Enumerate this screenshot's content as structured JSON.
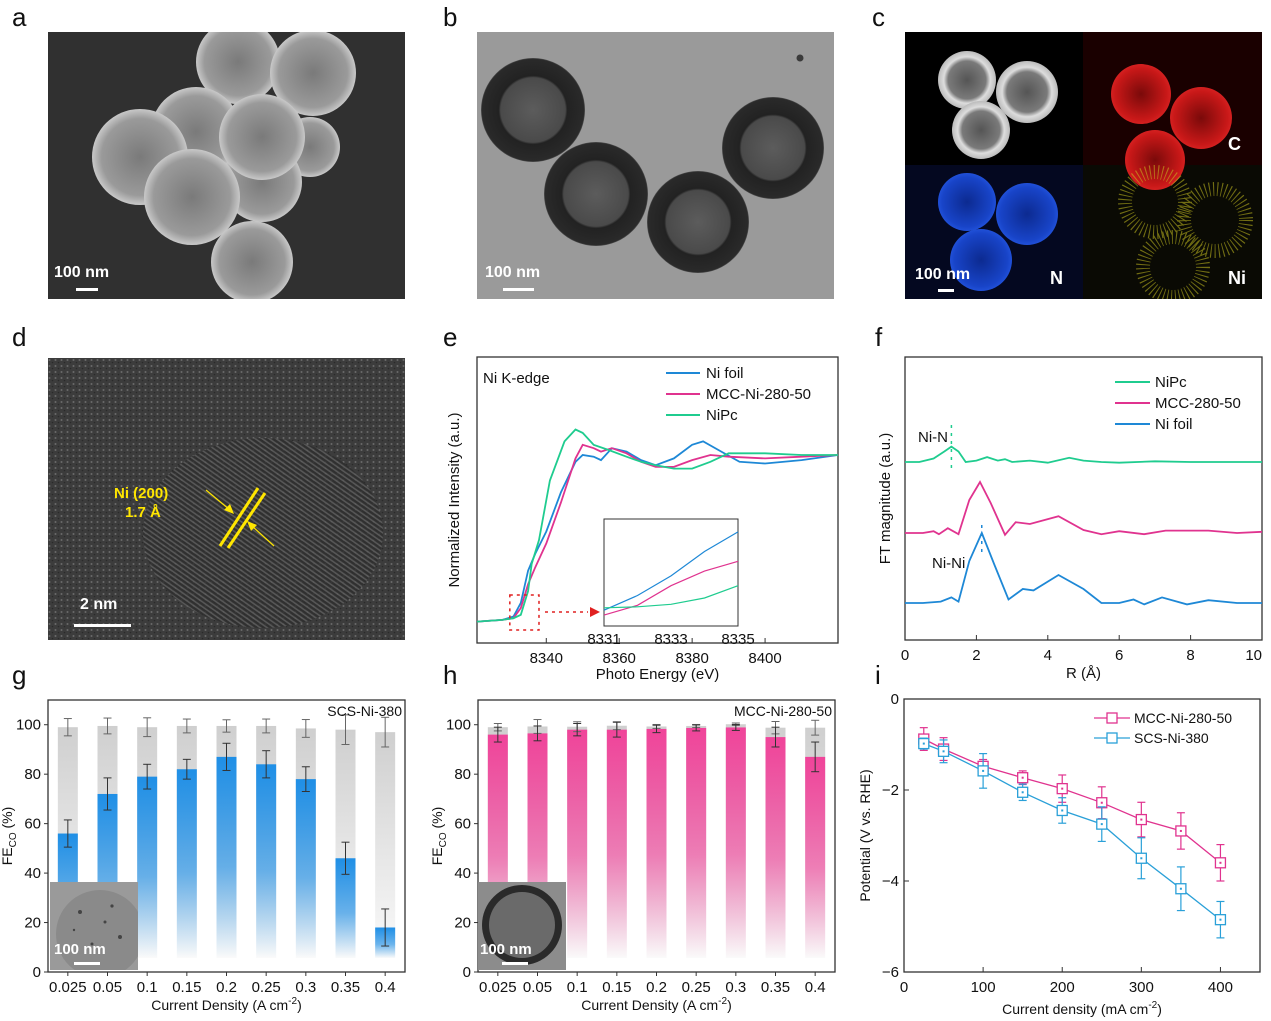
{
  "panels": {
    "a": {
      "label": "a",
      "scale_bar": "100 nm"
    },
    "b": {
      "label": "b",
      "scale_bar": "100 nm"
    },
    "c": {
      "label": "c",
      "scale_bar": "100 nm",
      "elements": [
        "C",
        "N",
        "Ni"
      ]
    },
    "d": {
      "label": "d",
      "scale_bar": "2 nm",
      "annotation_line1": "Ni (200)",
      "annotation_line2": "1.7 Å"
    },
    "e": {
      "label": "e"
    },
    "f": {
      "label": "f"
    },
    "g": {
      "label": "g",
      "inset_scale": "100 nm"
    },
    "h": {
      "label": "h",
      "inset_scale": "100 nm"
    },
    "i": {
      "label": "i"
    }
  },
  "colors": {
    "blue": "#1f8fe6",
    "pink": "#f0449a",
    "green": "#1fcc8f",
    "gray": "#cfcfcf",
    "ni_blue": "#1e88d6",
    "mcc_pink": "#e0338f"
  },
  "chart_data": [
    {
      "id": "e",
      "type": "line",
      "annotation": "Ni K-edge",
      "xlabel": "Photo Energy (eV)",
      "ylabel": "Normalized Intensity (a.u.)",
      "xlim": [
        8321,
        8420
      ],
      "xticks": [
        "8340",
        "8360",
        "8380",
        "8400"
      ],
      "xtick_values": [
        8340,
        8360,
        8380,
        8400
      ],
      "legend": [
        "Ni foil",
        "MCC-Ni-280-50",
        "NiPc"
      ],
      "legend_position": "top-right",
      "series": [
        {
          "name": "Ni foil",
          "x": [
            8321,
            8328,
            8331,
            8333,
            8335,
            8337,
            8340,
            8344,
            8348,
            8350,
            8353,
            8355,
            8358,
            8362,
            8366,
            8370,
            8375,
            8380,
            8383,
            8388,
            8393,
            8400,
            8410,
            8420
          ],
          "y": [
            0.02,
            0.03,
            0.05,
            0.13,
            0.32,
            0.42,
            0.55,
            0.78,
            0.96,
            1.0,
            0.99,
            0.97,
            1.04,
            1.02,
            0.97,
            0.94,
            0.98,
            1.06,
            1.08,
            1.02,
            0.96,
            0.95,
            0.97,
            1.0
          ]
        },
        {
          "name": "MCC-Ni-280-50",
          "x": [
            8321,
            8328,
            8331,
            8333,
            8335,
            8337,
            8340,
            8344,
            8348,
            8350,
            8353,
            8355,
            8358,
            8362,
            8366,
            8370,
            8375,
            8380,
            8385,
            8390,
            8400,
            8410,
            8420
          ],
          "y": [
            0.02,
            0.03,
            0.04,
            0.1,
            0.24,
            0.34,
            0.48,
            0.72,
            0.98,
            1.06,
            1.04,
            1.02,
            1.04,
            1.01,
            0.96,
            0.93,
            0.93,
            0.97,
            1.0,
            0.99,
            0.98,
            0.99,
            1.0
          ]
        },
        {
          "name": "NiPc",
          "x": [
            8321,
            8328,
            8331,
            8333,
            8335,
            8336,
            8338,
            8341,
            8345,
            8348,
            8350,
            8353,
            8357,
            8362,
            8366,
            8370,
            8375,
            8380,
            8385,
            8390,
            8400,
            8410,
            8420
          ],
          "y": [
            0.02,
            0.03,
            0.04,
            0.06,
            0.2,
            0.36,
            0.5,
            0.85,
            1.08,
            1.15,
            1.13,
            1.06,
            1.03,
            0.99,
            0.96,
            0.94,
            0.92,
            0.92,
            0.96,
            1.01,
            1.01,
            1.0,
            1.0
          ]
        }
      ],
      "inset": {
        "xticks": [
          "8331",
          "8333",
          "8335"
        ],
        "xtick_values": [
          8331,
          8333,
          8335
        ],
        "series": [
          {
            "name": "Ni foil",
            "x": [
              8331,
              8332,
              8333,
              8334,
              8335
            ],
            "y": [
              0.05,
              0.08,
              0.12,
              0.17,
              0.21
            ]
          },
          {
            "name": "MCC-Ni-280-50",
            "x": [
              8331,
              8332,
              8333,
              8334,
              8335
            ],
            "y": [
              0.04,
              0.06,
              0.1,
              0.13,
              0.15
            ]
          },
          {
            "name": "NiPc",
            "x": [
              8331,
              8332,
              8333,
              8334,
              8335
            ],
            "y": [
              0.055,
              0.057,
              0.062,
              0.075,
              0.1
            ]
          }
        ]
      }
    },
    {
      "id": "f",
      "type": "line",
      "xlabel": "R (Å)",
      "ylabel": "FT magnitude (a.u.)",
      "xlim": [
        0,
        10
      ],
      "xticks": [
        "0",
        "2",
        "4",
        "6",
        "8",
        "10"
      ],
      "xtick_values": [
        0,
        2,
        4,
        6,
        8,
        10
      ],
      "legend": [
        "NiPc",
        "MCC-280-50",
        "Ni foil"
      ],
      "legend_position": "top-right",
      "annotations": [
        "Ni-N",
        "Ni-Ni"
      ],
      "series": [
        {
          "name": "NiPc",
          "offset": 2.0,
          "x": [
            0,
            0.4,
            0.8,
            1.1,
            1.3,
            1.5,
            1.7,
            2.0,
            2.3,
            2.6,
            2.8,
            3.0,
            3.5,
            4.0,
            4.6,
            5.0,
            5.5,
            6.0,
            7.0,
            8.0,
            9.0,
            10
          ],
          "y": [
            0,
            0,
            0.05,
            0.15,
            0.22,
            0.15,
            0.0,
            0.02,
            0.07,
            0.02,
            0.04,
            0.0,
            0.02,
            -0.01,
            0.06,
            0.02,
            0.0,
            -0.01,
            0.01,
            0.0,
            0.0,
            0.0
          ]
        },
        {
          "name": "MCC-280-50",
          "offset": 1.0,
          "x": [
            0,
            0.5,
            0.8,
            0.95,
            1.2,
            1.5,
            1.8,
            2.1,
            2.4,
            2.8,
            3.1,
            3.5,
            4.3,
            5.0,
            5.5,
            6.0,
            6.7,
            7.3,
            8.5,
            9.3,
            10
          ],
          "y": [
            0,
            0,
            0.03,
            -0.02,
            0.08,
            -0.02,
            0.55,
            0.85,
            0.5,
            -0.03,
            0.18,
            0.15,
            0.28,
            0.05,
            -0.02,
            0.03,
            -0.02,
            0.04,
            0.04,
            0.0,
            0.02
          ]
        },
        {
          "name": "Ni foil",
          "offset": 0.0,
          "x": [
            0,
            0.5,
            1.0,
            1.3,
            1.5,
            1.8,
            2.15,
            2.5,
            2.9,
            3.3,
            3.6,
            4.3,
            5.0,
            5.5,
            6.0,
            6.4,
            6.7,
            7.2,
            7.9,
            8.5,
            9.3,
            10
          ],
          "y": [
            0,
            0,
            0.02,
            0.08,
            0.02,
            0.6,
            1.0,
            0.55,
            0.05,
            0.2,
            0.18,
            0.4,
            0.2,
            0.0,
            0.0,
            0.05,
            -0.02,
            0.08,
            -0.02,
            0.04,
            0.0,
            0.0
          ]
        }
      ]
    },
    {
      "id": "g",
      "type": "bar",
      "title": "SCS-Ni-380",
      "xlabel": "Current Density (A cm",
      "xlabel_sup": "-2",
      "xlabel_end": ")",
      "ylabel": "FE",
      "ylabel_sub": "CO",
      "ylabel_end": " (%)",
      "ylim": [
        0,
        110
      ],
      "yticks": [
        "0",
        "20",
        "40",
        "60",
        "80",
        "100"
      ],
      "ytick_values": [
        0,
        20,
        40,
        60,
        80,
        100
      ],
      "categories": [
        "0.025",
        "0.05",
        "0.1",
        "0.15",
        "0.2",
        "0.25",
        "0.3",
        "0.35",
        "0.4"
      ],
      "series": [
        {
          "name": "FE_CO",
          "values": [
            56,
            72,
            79,
            82,
            87,
            84,
            78,
            46,
            18
          ],
          "errors": [
            5.5,
            6.5,
            5,
            4,
            5.5,
            5.5,
            5,
            6.5,
            7.5
          ]
        },
        {
          "name": "Total FE",
          "values": [
            99,
            99.5,
            99,
            99.5,
            99.5,
            99.5,
            98.5,
            98,
            97
          ],
          "errors": [
            3.5,
            3.2,
            3.8,
            2.8,
            2.5,
            2.8,
            3.6,
            6,
            6
          ]
        }
      ]
    },
    {
      "id": "h",
      "type": "bar",
      "title": "MCC-Ni-280-50",
      "xlabel": "Current Density (A cm",
      "xlabel_sup": "-2",
      "xlabel_end": ")",
      "ylabel": "FE",
      "ylabel_sub": "CO",
      "ylabel_end": " (%)",
      "ylim": [
        0,
        110
      ],
      "yticks": [
        "0",
        "20",
        "40",
        "60",
        "80",
        "100"
      ],
      "ytick_values": [
        0,
        20,
        40,
        60,
        80,
        100
      ],
      "categories": [
        "0.025",
        "0.05",
        "0.1",
        "0.15",
        "0.2",
        "0.25",
        "0.3",
        "0.35",
        "0.4"
      ],
      "series": [
        {
          "name": "FE_CO",
          "values": [
            96,
            96.5,
            98,
            98,
            98.3,
            98.7,
            98.9,
            95,
            87
          ],
          "errors": [
            3,
            3,
            2.5,
            3,
            1.5,
            1.2,
            1.2,
            4,
            6
          ]
        },
        {
          "name": "Total FE",
          "values": [
            99,
            99.3,
            99.2,
            99.6,
            99.3,
            99.5,
            100.2,
            98.8,
            98.8
          ],
          "errors": [
            1.5,
            2.8,
            2.0,
            1.6,
            0.8,
            0.6,
            0.5,
            2.5,
            3
          ]
        }
      ]
    },
    {
      "id": "i",
      "type": "line",
      "xlabel": "Current density (mA cm",
      "xlabel_sup": "-2",
      "xlabel_end": ")",
      "ylabel": "Potential (V vs. RHE)",
      "xlim": [
        0,
        450
      ],
      "ylim": [
        -6,
        0
      ],
      "xticks": [
        "0",
        "100",
        "200",
        "300",
        "400"
      ],
      "xtick_values": [
        0,
        100,
        200,
        300,
        400
      ],
      "yticks": [
        "0",
        "−2",
        "−4",
        "−6"
      ],
      "ytick_values": [
        0,
        -2,
        -4,
        -6
      ],
      "legend": [
        "MCC-Ni-280-50",
        "SCS-Ni-380"
      ],
      "legend_position": "top-right",
      "series": [
        {
          "name": "MCC-Ni-280-50",
          "x": [
            25,
            50,
            100,
            150,
            200,
            250,
            300,
            350,
            400
          ],
          "y": [
            -0.88,
            -1.1,
            -1.48,
            -1.73,
            -1.97,
            -2.28,
            -2.65,
            -2.9,
            -3.6
          ],
          "errors": [
            0.25,
            0.25,
            0.15,
            0.15,
            0.3,
            0.35,
            0.38,
            0.4,
            0.4
          ]
        },
        {
          "name": "SCS-Ni-380",
          "x": [
            25,
            50,
            100,
            150,
            200,
            250,
            300,
            350,
            400
          ],
          "y": [
            -0.98,
            -1.15,
            -1.58,
            -2.05,
            -2.45,
            -2.75,
            -3.5,
            -4.17,
            -4.85
          ],
          "errors": [
            0.12,
            0.25,
            0.38,
            0.18,
            0.28,
            0.38,
            0.45,
            0.48,
            0.4
          ]
        }
      ]
    }
  ]
}
